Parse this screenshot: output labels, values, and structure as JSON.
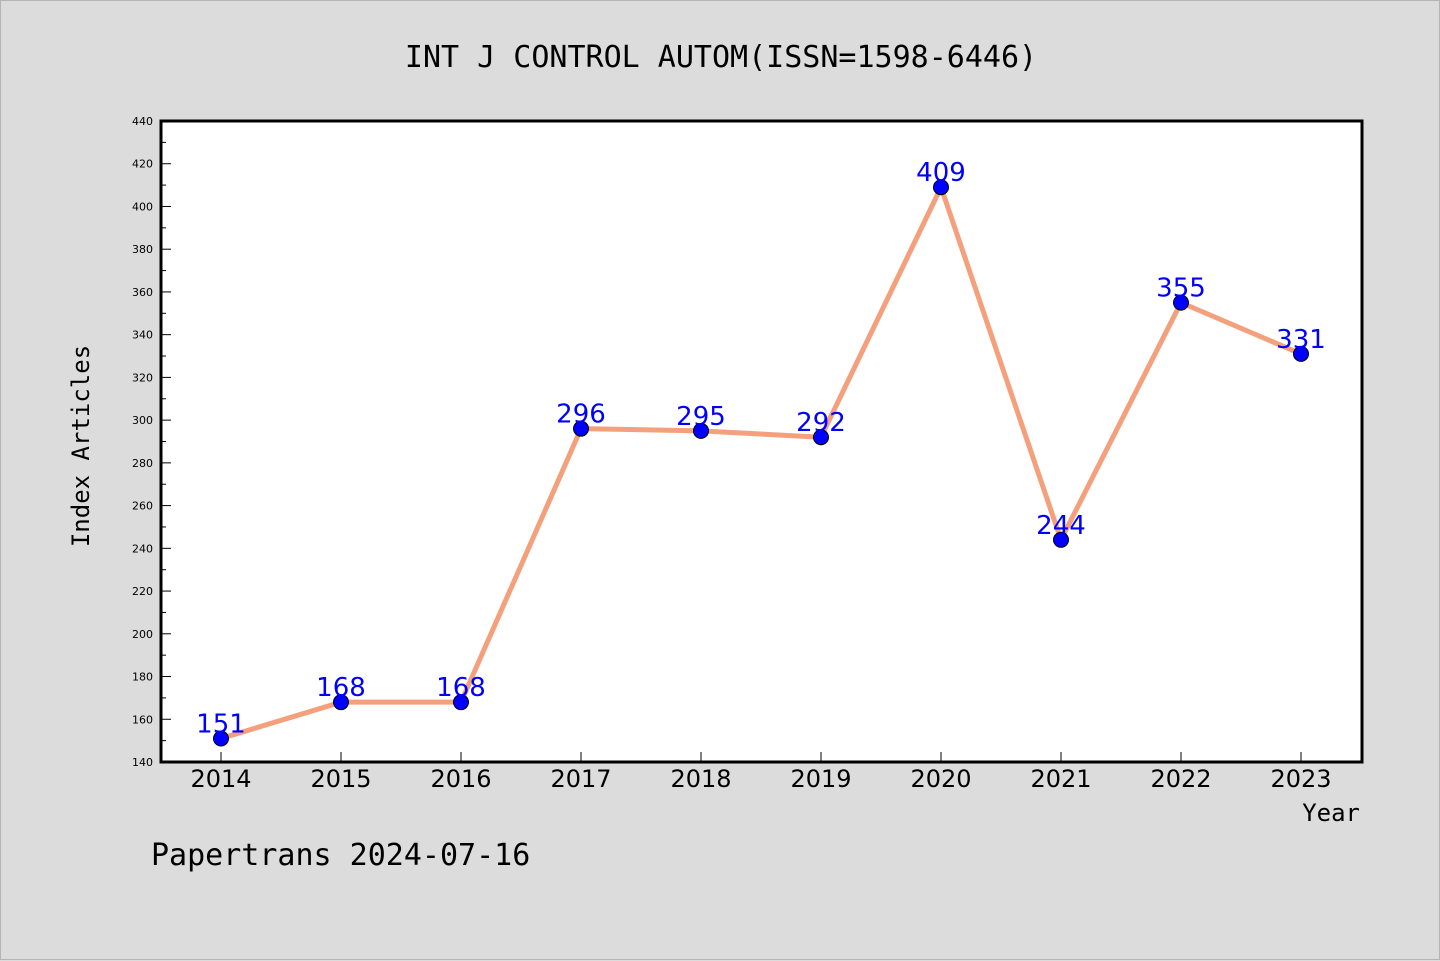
{
  "colors": {
    "background": "#dcdcdc",
    "plot_background": "#ffffff",
    "line": "#f4a07c",
    "marker": "#0000ff",
    "data_label": "#0000ff",
    "axis": "#000000"
  },
  "footer": "Papertrans 2024-07-16",
  "chart_data": {
    "type": "line",
    "title": "INT J CONTROL AUTOM(ISSN=1598-6446)",
    "xlabel": "Year",
    "ylabel": "Index Articles",
    "categories": [
      "2014",
      "2015",
      "2016",
      "2017",
      "2018",
      "2019",
      "2020",
      "2021",
      "2022",
      "2023"
    ],
    "series": [
      {
        "values": [
          151,
          168,
          168,
          296,
          295,
          292,
          409,
          244,
          355,
          331
        ]
      }
    ],
    "ylim": [
      140,
      440
    ],
    "yticks": [
      140,
      160,
      180,
      200,
      220,
      240,
      260,
      280,
      300,
      320,
      340,
      360,
      380,
      400,
      420,
      440
    ],
    "grid": false,
    "legend": "none",
    "data_labels": true
  }
}
